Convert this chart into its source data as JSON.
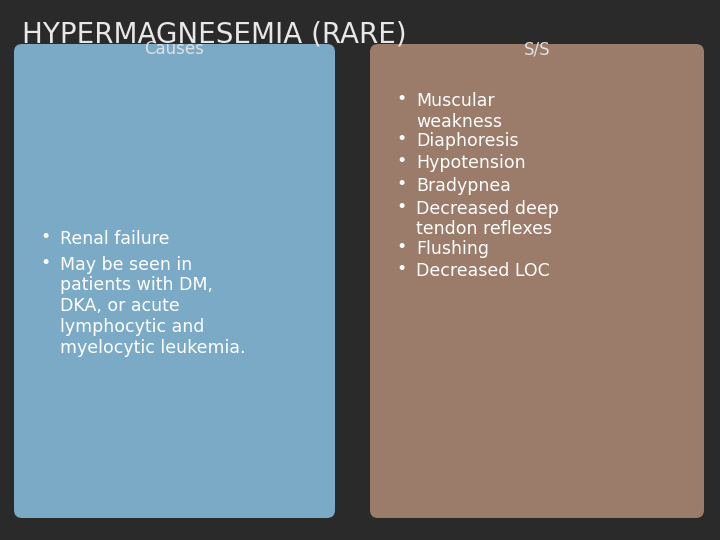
{
  "title": "HYPERMAGNESEMIA (RARE)",
  "title_color": "#e8e8e8",
  "title_fontsize": 20,
  "background_color": "#2a2a2a",
  "left_box_color": "#7baac7",
  "right_box_color": "#9b7b6a",
  "left_header": "Causes",
  "right_header": "S/S",
  "header_color": "#e0e0e0",
  "header_fontsize": 12,
  "text_color": "#ffffff",
  "body_fontsize": 12.5,
  "left_items": [
    "Renal failure",
    "May be seen in\npatients with DM,\nDKA, or acute\nlymphocytic and\nmyelocytic leukemia."
  ],
  "right_items": [
    "Muscular\nweakness",
    "Diaphoresis",
    "Hypotension",
    "Bradypnea",
    "Decreased deep\ntendon reflexes",
    "Flushing",
    "Decreased LOC"
  ]
}
